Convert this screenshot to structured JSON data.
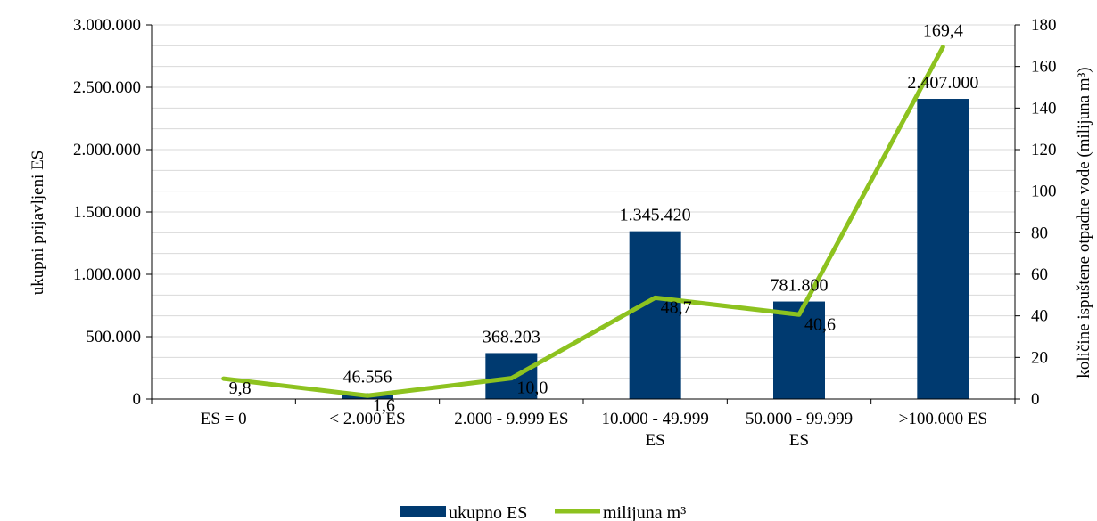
{
  "chart_data": {
    "type": "bar",
    "categories": [
      [
        "ES = 0"
      ],
      [
        "< 2.000 ES"
      ],
      [
        "2.000 - 9.999 ES"
      ],
      [
        "10.000 - 49.999",
        "ES"
      ],
      [
        "50.000 - 99.999",
        "ES"
      ],
      [
        ">100.000 ES"
      ]
    ],
    "series": [
      {
        "name": "ukupno ES",
        "type": "bar",
        "axis": "left",
        "values": [
          0,
          46556,
          368203,
          1345420,
          781800,
          2407000
        ],
        "labels": [
          "",
          "46.556",
          "368.203",
          "1.345.420",
          "781.800",
          "2.407.000"
        ]
      },
      {
        "name": "milijuna m³",
        "type": "line",
        "axis": "right",
        "values": [
          9.8,
          1.6,
          10.0,
          48.7,
          40.6,
          169.4
        ],
        "labels": [
          "9,8",
          "1,6",
          "10,0",
          "48,7",
          "40,6",
          "169,4"
        ]
      }
    ],
    "ylabel": "ukupni  prijavljeni ES",
    "y2label": "količine ispuštene otpadne vode (milijuna m³)",
    "ylim": [
      0,
      3000000
    ],
    "y2lim": [
      0,
      180
    ],
    "yticks": [
      0,
      500000,
      1000000,
      1500000,
      2000000,
      2500000,
      3000000
    ],
    "yticklabels": [
      "0",
      "500.000",
      "1.000.000",
      "1.500.000",
      "2.000.000",
      "2.500.000",
      "3.000.000"
    ],
    "y2ticks": [
      0,
      20,
      40,
      60,
      80,
      100,
      120,
      140,
      160,
      180
    ],
    "y2ticklabels": [
      "0",
      "20",
      "40",
      "60",
      "80",
      "100",
      "120",
      "140",
      "160",
      "180"
    ],
    "grid": true,
    "legend_position": "bottom",
    "colors": {
      "bar": "#003A70",
      "line": "#8DC21F",
      "grid": "#D9D9D9",
      "axis": "#000000"
    }
  }
}
